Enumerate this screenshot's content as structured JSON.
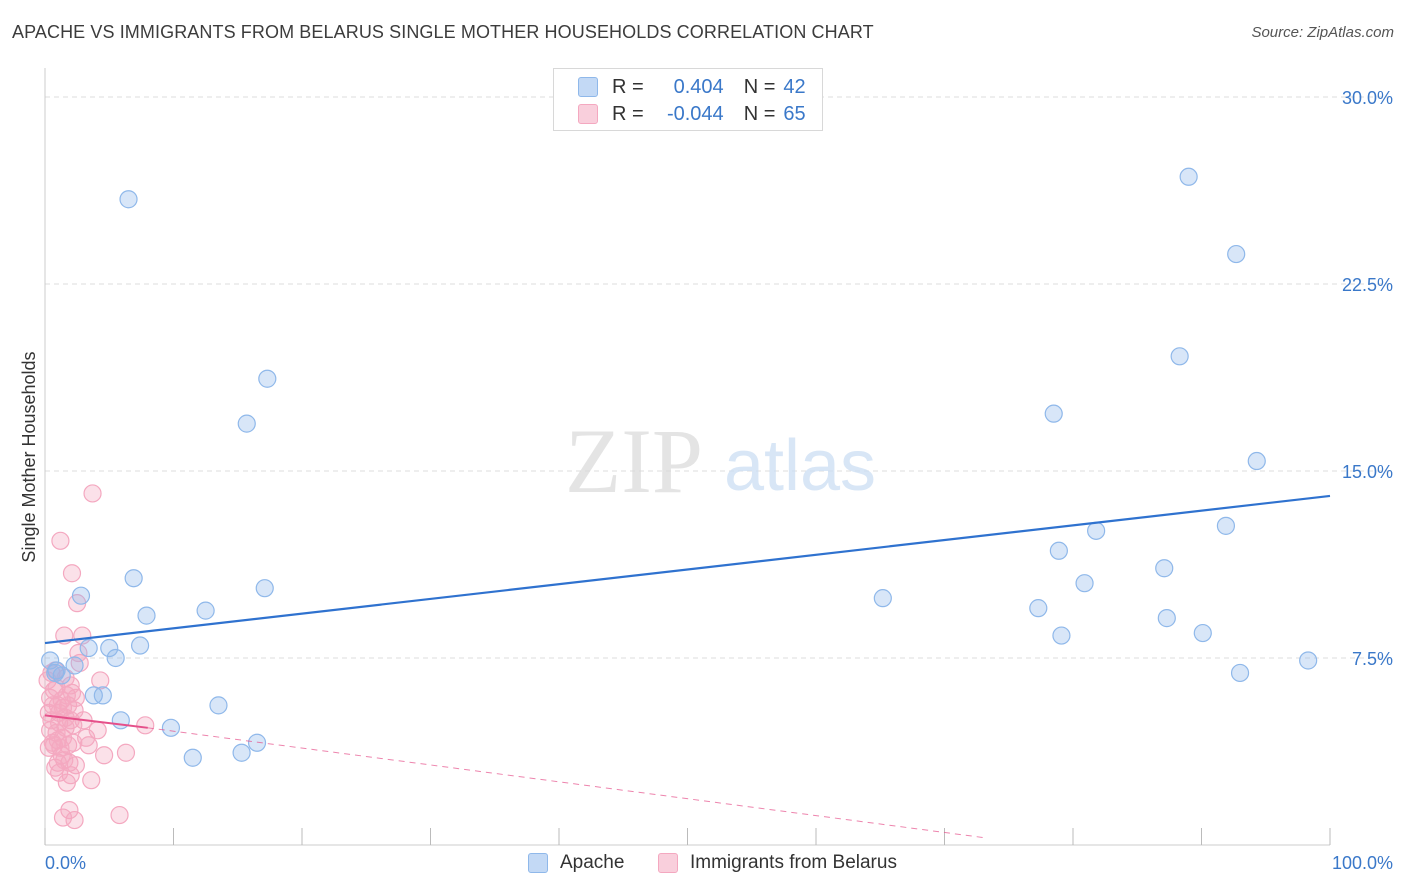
{
  "header": {
    "title": "APACHE VS IMMIGRANTS FROM BELARUS SINGLE MOTHER HOUSEHOLDS CORRELATION CHART",
    "source": "Source: ZipAtlas.com"
  },
  "watermark": {
    "zip": "ZIP",
    "atlas": "atlas"
  },
  "legend": {
    "r_label": "R =",
    "n_label": "N =",
    "rows": [
      {
        "r": "0.404",
        "n": "42"
      },
      {
        "r": "-0.044",
        "n": "65"
      }
    ]
  },
  "chart_data": {
    "type": "scatter",
    "xlabel": "",
    "ylabel": "Single Mother Households",
    "xlim": [
      0,
      100
    ],
    "ylim": [
      0,
      30
    ],
    "x_tick_labels": [
      "0.0%",
      "100.0%"
    ],
    "y_ticks": [
      7.5,
      15.0,
      22.5,
      30.0
    ],
    "y_tick_labels": [
      "7.5%",
      "15.0%",
      "22.5%",
      "30.0%"
    ],
    "grid": true,
    "legend_position": "top-center and bottom",
    "series": [
      {
        "name": "Apache",
        "color": "#8fb8ea",
        "line_color": "#2f72cf",
        "trend": {
          "x": [
            0,
            100
          ],
          "y": [
            8.1,
            14.0
          ]
        },
        "points": [
          [
            0.4,
            7.4
          ],
          [
            0.8,
            6.9
          ],
          [
            1.3,
            6.8
          ],
          [
            2.3,
            7.2
          ],
          [
            2.8,
            10.0
          ],
          [
            3.4,
            7.9
          ],
          [
            3.8,
            6.0
          ],
          [
            4.5,
            6.0
          ],
          [
            5.0,
            7.9
          ],
          [
            5.5,
            7.5
          ],
          [
            5.9,
            5.0
          ],
          [
            6.5,
            25.9
          ],
          [
            6.9,
            10.7
          ],
          [
            7.4,
            8.0
          ],
          [
            7.9,
            9.2
          ],
          [
            9.8,
            4.7
          ],
          [
            11.5,
            3.5
          ],
          [
            12.5,
            9.4
          ],
          [
            13.5,
            5.6
          ],
          [
            15.3,
            3.7
          ],
          [
            15.7,
            16.9
          ],
          [
            16.5,
            4.1
          ],
          [
            17.1,
            10.3
          ],
          [
            17.3,
            18.7
          ],
          [
            65.2,
            9.9
          ],
          [
            77.3,
            9.5
          ],
          [
            78.5,
            17.3
          ],
          [
            78.9,
            11.8
          ],
          [
            79.1,
            8.4
          ],
          [
            80.9,
            10.5
          ],
          [
            81.8,
            12.6
          ],
          [
            87.1,
            11.1
          ],
          [
            87.3,
            9.1
          ],
          [
            88.3,
            19.6
          ],
          [
            89.0,
            26.8
          ],
          [
            90.1,
            8.5
          ],
          [
            91.9,
            12.8
          ],
          [
            92.7,
            23.7
          ],
          [
            93.0,
            6.9
          ],
          [
            94.3,
            15.4
          ],
          [
            98.3,
            7.4
          ],
          [
            0.9,
            7.0
          ]
        ]
      },
      {
        "name": "Immigrants from Belarus",
        "color": "#f4a8c0",
        "line_color": "#e5508a",
        "trend": {
          "x": [
            0,
            8
          ],
          "y": [
            5.2,
            4.7
          ]
        },
        "trend_dashed": {
          "x": [
            8,
            73
          ],
          "y": [
            4.7,
            0.3
          ]
        },
        "points": [
          [
            0.2,
            6.6
          ],
          [
            0.3,
            5.3
          ],
          [
            0.4,
            4.6
          ],
          [
            0.5,
            5.0
          ],
          [
            0.6,
            4.1
          ],
          [
            0.7,
            6.2
          ],
          [
            0.8,
            7.0
          ],
          [
            0.9,
            4.5
          ],
          [
            1.0,
            5.6
          ],
          [
            1.0,
            3.3
          ],
          [
            1.1,
            4.9
          ],
          [
            1.2,
            3.9
          ],
          [
            1.2,
            12.2
          ],
          [
            1.3,
            5.8
          ],
          [
            1.4,
            4.3
          ],
          [
            1.4,
            1.1
          ],
          [
            1.5,
            8.4
          ],
          [
            1.5,
            3.4
          ],
          [
            1.6,
            5.1
          ],
          [
            1.6,
            6.7
          ],
          [
            1.7,
            2.5
          ],
          [
            1.8,
            4.0
          ],
          [
            1.8,
            5.6
          ],
          [
            1.9,
            1.4
          ],
          [
            2.0,
            5.0
          ],
          [
            2.0,
            2.8
          ],
          [
            2.1,
            6.1
          ],
          [
            2.1,
            10.9
          ],
          [
            2.2,
            4.8
          ],
          [
            2.3,
            1.0
          ],
          [
            2.3,
            5.4
          ],
          [
            2.4,
            5.9
          ],
          [
            2.4,
            3.2
          ],
          [
            2.5,
            9.7
          ],
          [
            2.6,
            7.7
          ],
          [
            2.7,
            7.3
          ],
          [
            2.9,
            8.4
          ],
          [
            3.0,
            5.0
          ],
          [
            3.2,
            4.3
          ],
          [
            3.4,
            4.0
          ],
          [
            3.6,
            2.6
          ],
          [
            3.7,
            14.1
          ],
          [
            4.1,
            4.6
          ],
          [
            4.3,
            6.6
          ],
          [
            4.6,
            3.6
          ],
          [
            5.8,
            1.2
          ],
          [
            6.3,
            3.7
          ],
          [
            7.8,
            4.8
          ],
          [
            0.3,
            3.9
          ],
          [
            0.5,
            6.9
          ],
          [
            0.6,
            5.6
          ],
          [
            0.7,
            4.0
          ],
          [
            0.8,
            3.1
          ],
          [
            0.9,
            6.3
          ],
          [
            1.0,
            4.2
          ],
          [
            1.1,
            5.3
          ],
          [
            1.3,
            3.6
          ],
          [
            1.4,
            5.5
          ],
          [
            1.6,
            4.7
          ],
          [
            1.7,
            6.0
          ],
          [
            1.9,
            3.3
          ],
          [
            2.2,
            4.1
          ],
          [
            0.4,
            5.9
          ],
          [
            1.1,
            2.9
          ],
          [
            2.0,
            6.4
          ]
        ]
      }
    ]
  }
}
